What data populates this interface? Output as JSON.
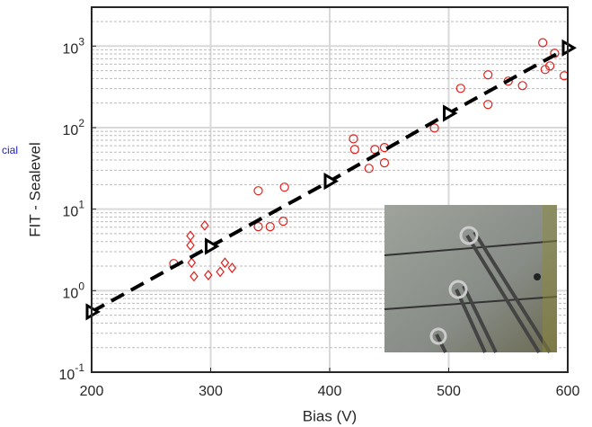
{
  "chart_data": {
    "type": "scatter",
    "side_label": "cial",
    "xlabel": "Bias (V)",
    "ylabel": "FIT - Sealevel",
    "xlim": [
      200,
      600
    ],
    "xticks": [
      200,
      300,
      400,
      500,
      600
    ],
    "ylim": [
      0.1,
      3000
    ],
    "log_y": true,
    "grid": true,
    "minor_grid": true,
    "yticks": [
      {
        "value": 0.1,
        "label": "10",
        "exponent": "-1"
      },
      {
        "value": 1,
        "label": "10",
        "exponent": "0"
      },
      {
        "value": 10,
        "label": "10",
        "exponent": "1"
      },
      {
        "value": 100,
        "label": "10",
        "exponent": "2"
      },
      {
        "value": 1000,
        "label": "10",
        "exponent": "3"
      }
    ],
    "series": [
      {
        "marker": "circle",
        "color": "#e0201b",
        "x": [
          269,
          340,
          340,
          350,
          361,
          362,
          420,
          421,
          438,
          433,
          446,
          446,
          488,
          510,
          533,
          533,
          550,
          562,
          579,
          581,
          585,
          589,
          597
        ],
        "values": [
          2.15,
          16.8,
          6.1,
          6.1,
          7.1,
          18.6,
          73,
          54,
          54,
          31.6,
          37,
          57,
          99,
          303,
          444,
          192,
          372,
          327,
          1100,
          516,
          571,
          816,
          433
        ]
      },
      {
        "marker": "diamond",
        "color": "#e0201b",
        "x": [
          283,
          283,
          284,
          295,
          286,
          298,
          308,
          312,
          318
        ],
        "values": [
          4.7,
          3.6,
          2.2,
          6.3,
          1.5,
          1.55,
          1.7,
          2.2,
          1.9
        ]
      },
      {
        "marker": "triangle",
        "line_style": "dashed",
        "color": "#000000",
        "x": [
          200,
          300,
          400,
          500,
          600
        ],
        "values": [
          0.55,
          3.5,
          22,
          150,
          950
        ]
      }
    ]
  }
}
